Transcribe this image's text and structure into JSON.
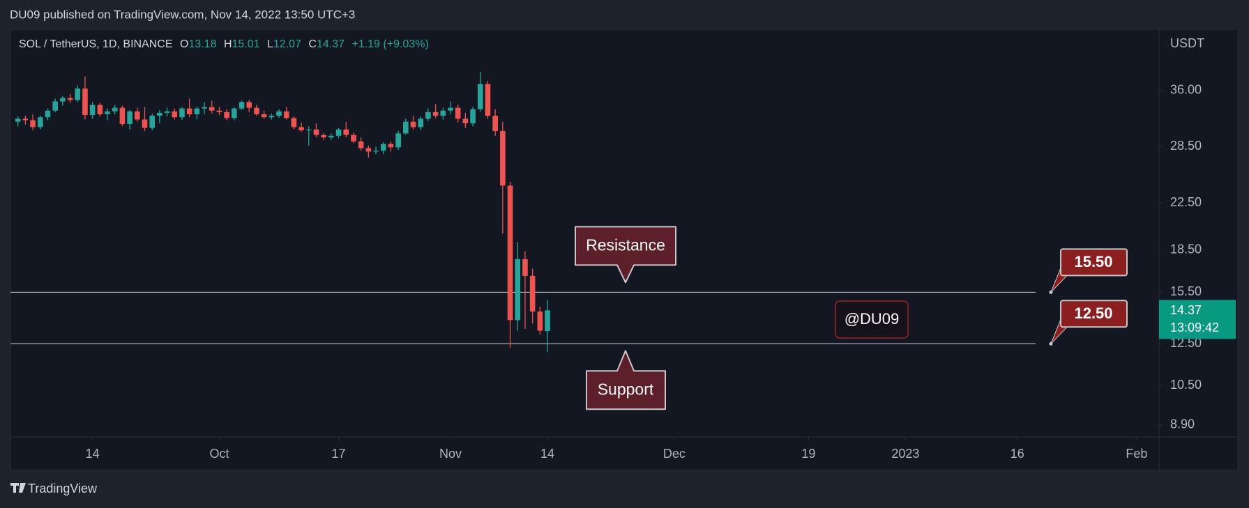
{
  "header": {
    "published": "DU09 published on TradingView.com, Nov 14, 2022 13:50 UTC+3"
  },
  "footer": {
    "brand": "TradingView"
  },
  "chart_data": {
    "type": "candlestick",
    "legend": {
      "symbol": "SOL / TetherUS, 1D, BINANCE",
      "open_label": "O",
      "open": "13.18",
      "high_label": "H",
      "high": "15.01",
      "low_label": "L",
      "low": "12.07",
      "close_label": "C",
      "close": "14.37",
      "change": "+1.19 (+9.03%)"
    },
    "y_unit": "USDT",
    "log_scale": true,
    "up_color": "#26a69a",
    "down_color": "#ef5350",
    "x": [
      "2022-09-04",
      "2022-09-05",
      "2022-09-06",
      "2022-09-07",
      "2022-09-08",
      "2022-09-09",
      "2022-09-10",
      "2022-09-11",
      "2022-09-12",
      "2022-09-13",
      "2022-09-14",
      "2022-09-15",
      "2022-09-16",
      "2022-09-17",
      "2022-09-18",
      "2022-09-19",
      "2022-09-20",
      "2022-09-21",
      "2022-09-22",
      "2022-09-23",
      "2022-09-24",
      "2022-09-25",
      "2022-09-26",
      "2022-09-27",
      "2022-09-28",
      "2022-09-29",
      "2022-09-30",
      "2022-10-01",
      "2022-10-02",
      "2022-10-03",
      "2022-10-04",
      "2022-10-05",
      "2022-10-06",
      "2022-10-07",
      "2022-10-08",
      "2022-10-09",
      "2022-10-10",
      "2022-10-11",
      "2022-10-12",
      "2022-10-13",
      "2022-10-14",
      "2022-10-15",
      "2022-10-16",
      "2022-10-17",
      "2022-10-18",
      "2022-10-19",
      "2022-10-20",
      "2022-10-21",
      "2022-10-22",
      "2022-10-23",
      "2022-10-24",
      "2022-10-25",
      "2022-10-26",
      "2022-10-27",
      "2022-10-28",
      "2022-10-29",
      "2022-10-30",
      "2022-10-31",
      "2022-11-01",
      "2022-11-02",
      "2022-11-03",
      "2022-11-04",
      "2022-11-05",
      "2022-11-06",
      "2022-11-07",
      "2022-11-08",
      "2022-11-09",
      "2022-11-10",
      "2022-11-11",
      "2022-11-12",
      "2022-11-13",
      "2022-11-14"
    ],
    "open": [
      31.6,
      32.0,
      31.8,
      30.9,
      32.2,
      33.1,
      34.4,
      34.9,
      34.6,
      36.3,
      32.5,
      33.9,
      32.6,
      33.0,
      33.5,
      31.3,
      33.0,
      31.9,
      30.8,
      32.4,
      32.8,
      33.0,
      32.2,
      33.4,
      32.6,
      33.4,
      33.6,
      33.1,
      32.9,
      32.1,
      33.4,
      34.3,
      33.5,
      32.6,
      32.2,
      32.4,
      33.0,
      32.1,
      30.9,
      30.5,
      30.6,
      29.9,
      29.6,
      29.8,
      30.6,
      29.9,
      29.1,
      28.3,
      27.9,
      28.0,
      28.8,
      28.4,
      30.1,
      31.6,
      30.9,
      32.0,
      32.9,
      32.4,
      33.1,
      33.5,
      32.0,
      31.4,
      33.3,
      37.0,
      32.4,
      30.4,
      24.2,
      13.8,
      17.8,
      16.6,
      14.3,
      13.18
    ],
    "high": [
      32.3,
      32.4,
      32.6,
      32.4,
      33.4,
      34.8,
      35.2,
      35.5,
      36.8,
      38.2,
      34.3,
      34.2,
      33.4,
      33.9,
      33.8,
      33.2,
      33.5,
      33.6,
      32.7,
      33.2,
      33.5,
      33.4,
      33.6,
      34.8,
      33.7,
      34.3,
      34.5,
      33.6,
      33.3,
      33.6,
      34.5,
      34.6,
      33.9,
      33.1,
      32.7,
      33.3,
      33.6,
      32.3,
      31.5,
      31.0,
      31.4,
      30.1,
      30.1,
      30.8,
      31.6,
      30.2,
      29.6,
      28.6,
      28.5,
      29.0,
      29.1,
      30.4,
      32.0,
      32.4,
      32.3,
      33.4,
      34.0,
      33.5,
      34.4,
      33.9,
      32.8,
      33.6,
      38.9,
      37.5,
      33.3,
      31.6,
      24.6,
      19.1,
      18.4,
      17.1,
      14.6,
      15.01
    ],
    "low": [
      31.0,
      31.2,
      30.5,
      30.6,
      31.8,
      32.9,
      33.8,
      34.2,
      34.3,
      31.9,
      32.0,
      32.3,
      31.8,
      32.6,
      31.0,
      30.6,
      31.6,
      30.4,
      30.5,
      31.4,
      32.3,
      31.9,
      31.8,
      32.2,
      31.9,
      32.6,
      32.7,
      32.5,
      31.8,
      31.8,
      33.2,
      32.9,
      32.4,
      32.0,
      31.9,
      32.1,
      31.9,
      30.6,
      30.3,
      28.6,
      29.6,
      29.3,
      29.3,
      29.5,
      29.6,
      28.9,
      28.0,
      27.2,
      27.6,
      27.6,
      27.9,
      28.1,
      29.9,
      30.6,
      30.5,
      31.7,
      32.1,
      31.9,
      32.6,
      31.5,
      30.8,
      31.0,
      33.0,
      32.0,
      29.8,
      19.8,
      12.3,
      13.2,
      13.3,
      13.6,
      13.0,
      12.07
    ],
    "close": [
      32.0,
      31.8,
      30.9,
      32.2,
      33.1,
      34.4,
      34.9,
      34.6,
      36.3,
      32.5,
      33.9,
      32.6,
      33.0,
      33.5,
      31.3,
      33.0,
      31.9,
      30.8,
      32.4,
      32.8,
      33.0,
      32.2,
      33.4,
      32.6,
      33.4,
      33.6,
      33.1,
      32.9,
      32.1,
      33.4,
      34.3,
      33.5,
      32.6,
      32.2,
      32.4,
      33.0,
      32.1,
      30.9,
      30.5,
      30.6,
      29.9,
      29.6,
      29.8,
      30.6,
      29.9,
      29.1,
      28.3,
      27.9,
      28.0,
      28.8,
      28.4,
      30.1,
      31.6,
      30.9,
      32.0,
      32.9,
      32.4,
      33.1,
      33.5,
      32.0,
      31.4,
      33.3,
      37.0,
      32.4,
      30.4,
      24.2,
      13.8,
      17.8,
      16.6,
      14.3,
      13.2,
      14.37
    ],
    "xlim": [
      "2022-09-03",
      "2023-02-04"
    ],
    "xticks": [
      {
        "value": "2022-09-14",
        "label": "14"
      },
      {
        "value": "2022-10-01",
        "label": "Oct"
      },
      {
        "value": "2022-10-17",
        "label": "17"
      },
      {
        "value": "2022-11-01",
        "label": "Nov"
      },
      {
        "value": "2022-11-14",
        "label": "14"
      },
      {
        "value": "2022-12-01",
        "label": "Dec"
      },
      {
        "value": "2022-12-19",
        "label": "19"
      },
      {
        "value": "2023-01-01",
        "label": "2023"
      },
      {
        "value": "2023-01-16",
        "label": "16"
      },
      {
        "value": "2023-02-01",
        "label": "Feb"
      }
    ],
    "ylim": [
      8.47,
      46.5
    ],
    "yticks": [
      {
        "value": 36,
        "label": "36.00"
      },
      {
        "value": 28.5,
        "label": "28.50"
      },
      {
        "value": 22.5,
        "label": "22.50"
      },
      {
        "value": 18.5,
        "label": "18.50"
      },
      {
        "value": 15.5,
        "label": "15.50"
      },
      {
        "value": 12.5,
        "label": "12.50"
      },
      {
        "value": 10.5,
        "label": "10.50"
      },
      {
        "value": 8.9,
        "label": "8.90"
      }
    ],
    "levels": [
      {
        "value": 15.5,
        "label": "15.50"
      },
      {
        "value": 12.5,
        "label": "12.50"
      }
    ],
    "annotations": {
      "resistance": "Resistance",
      "support": "Support",
      "watermark": "@DU09"
    },
    "last_price": {
      "value": 14.37,
      "label": "14.37",
      "countdown": "13:09:42"
    }
  }
}
